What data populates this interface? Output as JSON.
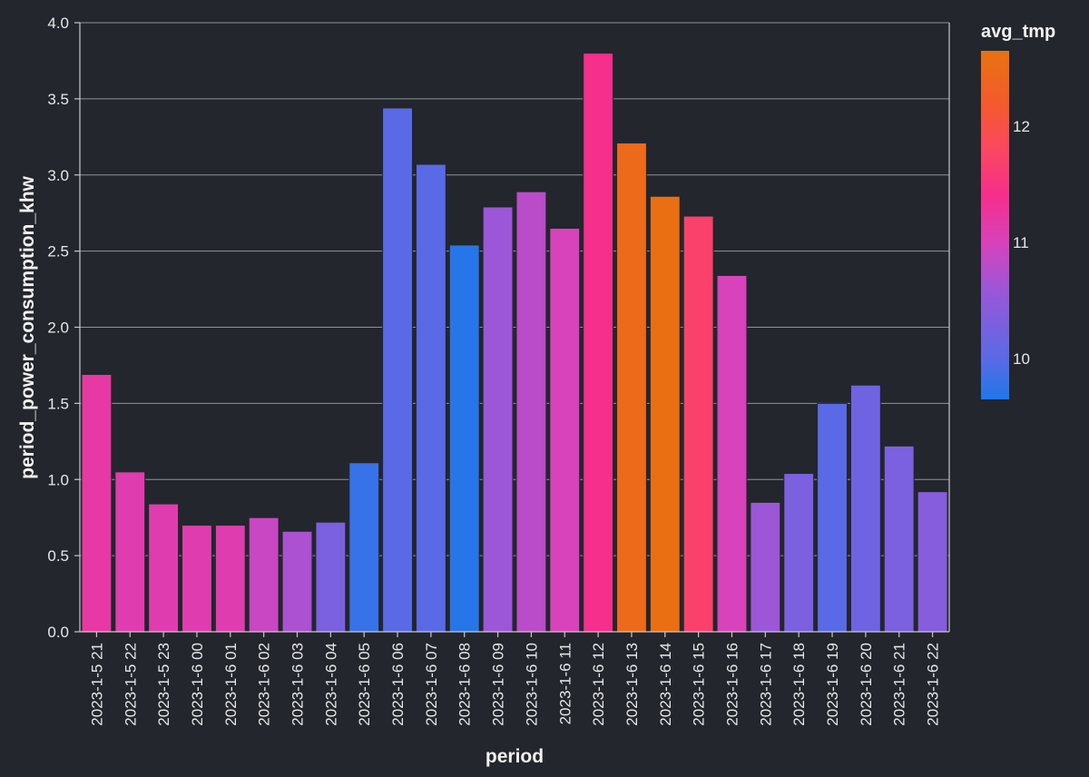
{
  "chart_data": {
    "type": "bar",
    "xlabel": "period",
    "ylabel": "period_power_consumption_khw",
    "ylim": [
      0,
      4.0
    ],
    "y_ticks": [
      "0.0",
      "0.5",
      "1.0",
      "1.5",
      "2.0",
      "2.5",
      "3.0",
      "3.5",
      "4.0"
    ],
    "grid": true,
    "categories": [
      "2023-1-5 21",
      "2023-1-5 22",
      "2023-1-5 23",
      "2023-1-6 00",
      "2023-1-6 01",
      "2023-1-6 02",
      "2023-1-6 03",
      "2023-1-6 04",
      "2023-1-6 05",
      "2023-1-6 06",
      "2023-1-6 07",
      "2023-1-6 08",
      "2023-1-6 09",
      "2023-1-6 10",
      "2023-1-6 11",
      "2023-1-6 12",
      "2023-1-6 13",
      "2023-1-6 14",
      "2023-1-6 15",
      "2023-1-6 16",
      "2023-1-6 17",
      "2023-1-6 18",
      "2023-1-6 19",
      "2023-1-6 20",
      "2023-1-6 21",
      "2023-1-6 22"
    ],
    "values": [
      1.69,
      1.05,
      0.84,
      0.7,
      0.7,
      0.75,
      0.66,
      0.72,
      1.11,
      3.44,
      3.07,
      2.54,
      2.79,
      2.89,
      2.65,
      3.8,
      3.21,
      2.86,
      2.73,
      2.34,
      0.85,
      1.04,
      1.5,
      1.62,
      1.22,
      0.92
    ],
    "color_values": [
      11.2,
      11.1,
      11.1,
      11.1,
      11.1,
      10.9,
      10.7,
      10.3,
      9.8,
      10.0,
      10.0,
      9.7,
      10.6,
      10.8,
      11.0,
      11.4,
      12.5,
      12.6,
      11.7,
      11.0,
      10.6,
      10.3,
      10.0,
      10.2,
      10.3,
      10.4
    ],
    "legend": {
      "title": "avg_tmp",
      "placement": "right",
      "type": "gradient",
      "range": [
        9.65,
        12.65
      ],
      "ticks": [
        "10",
        "11",
        "12"
      ],
      "tick_values": [
        10,
        11,
        12
      ],
      "gradient_stops": [
        {
          "value": 9.65,
          "color": "#1f78ea"
        },
        {
          "value": 10.0,
          "color": "#5a6ae6"
        },
        {
          "value": 10.6,
          "color": "#9c56d8"
        },
        {
          "value": 11.0,
          "color": "#d842bb"
        },
        {
          "value": 11.4,
          "color": "#f62e8c"
        },
        {
          "value": 11.8,
          "color": "#fb4760"
        },
        {
          "value": 12.2,
          "color": "#f45a2c"
        },
        {
          "value": 12.65,
          "color": "#e8720f"
        }
      ]
    },
    "colors": {
      "background": "#23262d",
      "text": "#e8e8e8",
      "grid": "#8f939a"
    }
  }
}
